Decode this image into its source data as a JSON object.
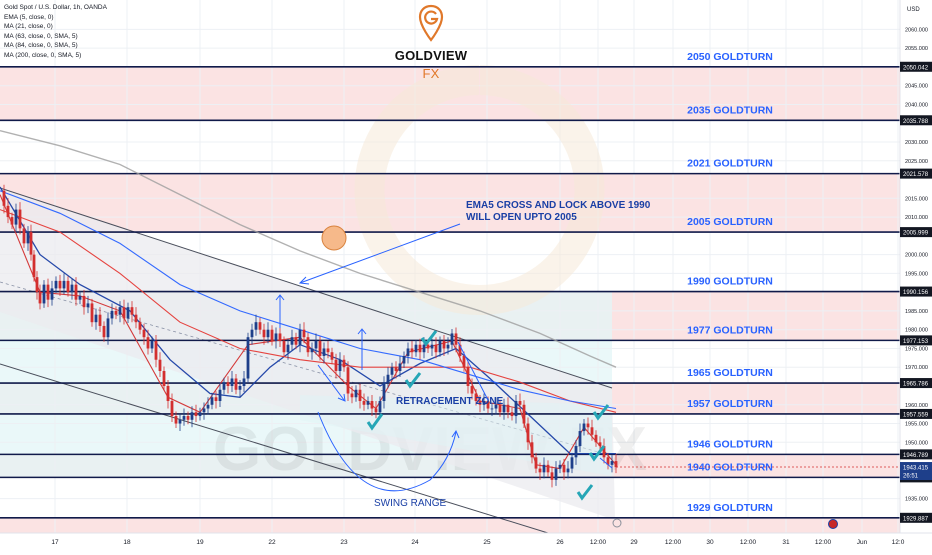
{
  "header": {
    "symbol": "Gold Spot / U.S. Dollar, 1h, OANDA",
    "indicators": [
      "EMA (5, close, 0)",
      "MA (21, close, 0)",
      "MA (63, close, 0, SMA, 5)",
      "MA (84, close, 0, SMA, 5)",
      "MA (200, close, 0, SMA, 5)"
    ]
  },
  "logo": {
    "text": "GOLDVIEW",
    "suffix": "FX",
    "watermark": "GOLDVIEW FX"
  },
  "colors": {
    "background": "#ffffff",
    "pink_zone": "#fbe3e3",
    "cyan_zone": "#e3f5f7",
    "grey_channel": "#ebebef",
    "level_line": "#101a4a",
    "level_label": "#2962ff",
    "candle_up": "#1e3f8a",
    "candle_down": "#d32f2f",
    "check": "#26a6b6",
    "ema5": "#d32f2f",
    "ma21": "#1a3fa5",
    "ma63": "#e53935",
    "ma84": "#2962ff",
    "ma200": "#9e9e9e",
    "logo_accent": "#e0782a",
    "price_tag": "#131722",
    "current_tag": "#1e3f8a"
  },
  "chart_data": {
    "type": "line",
    "title": "Gold Spot / U.S. Dollar, 1h, OANDA",
    "xlabel": "",
    "ylabel": "USD",
    "ylim": [
      1927.5,
      2067.5
    ],
    "grid": true,
    "price_axis": {
      "unit": "USD",
      "ticks": [
        1935,
        1950,
        1955,
        1960,
        1970,
        1975,
        1980,
        1985,
        1995,
        2000,
        2010,
        2015,
        2025,
        2030,
        2040,
        2045,
        2055,
        2060
      ]
    },
    "time_axis": {
      "ticks": [
        "17",
        "18",
        "19",
        "22",
        "23",
        "24",
        "25",
        "26",
        "12:00",
        "29",
        "12:00",
        "30",
        "12:00",
        "31",
        "12:00",
        "Jun",
        "12:0"
      ]
    },
    "levels": [
      {
        "label": "2050 GOLDTURN",
        "price": 2050.042
      },
      {
        "label": "2035 GOLDTURN",
        "price": 2035.788
      },
      {
        "label": "2021 GOLDTURN",
        "price": 2021.578
      },
      {
        "label": "2005 GOLDTURN",
        "price": 2005.999
      },
      {
        "label": "1990 GOLDTURN",
        "price": 1990.156
      },
      {
        "label": "1977 GOLDTURN",
        "price": 1977.153
      },
      {
        "label": "1965 GOLDTURN",
        "price": 1965.786
      },
      {
        "label": "1957 GOLDTURN",
        "price": 1957.559
      },
      {
        "label": "1946 GOLDTURN",
        "price": 1946.789
      },
      {
        "label": "1940 GOLDTURN",
        "price": 1940.657
      },
      {
        "label": "1929 GOLDTURN",
        "price": 1929.887
      }
    ],
    "price_tags": [
      "2050.042",
      "2035.788",
      "2021.578",
      "2005.999",
      "1990.156",
      "1977.153",
      "1965.786",
      "1957.559",
      "1946.789",
      "1940.657",
      "1929.887"
    ],
    "current_price": {
      "value": "1943.415",
      "countdown": "26:51"
    },
    "annotations": {
      "ema_note": [
        "EMA5 CROSS AND LOCK ABOVE 1990",
        "WILL OPEN UPTO 2005"
      ],
      "retracement": "RETRACEMENT ZONE",
      "swing": "SWING RANGE"
    },
    "close_path": [
      [
        0,
        2017
      ],
      [
        4,
        2013
      ],
      [
        8,
        2010
      ],
      [
        12,
        2008
      ],
      [
        16,
        2012
      ],
      [
        20,
        2007
      ],
      [
        24,
        2003
      ],
      [
        28,
        2006
      ],
      [
        31,
        2000
      ],
      [
        34,
        1994
      ],
      [
        37,
        1990
      ],
      [
        40,
        1987
      ],
      [
        44,
        1992
      ],
      [
        48,
        1988
      ],
      [
        52,
        1991
      ],
      [
        56,
        1993
      ],
      [
        60,
        1991
      ],
      [
        64,
        1993
      ],
      [
        68,
        1990
      ],
      [
        72,
        1992
      ],
      [
        76,
        1988
      ],
      [
        80,
        1989
      ],
      [
        84,
        1986
      ],
      [
        88,
        1987
      ],
      [
        92,
        1982
      ],
      [
        96,
        1984
      ],
      [
        100,
        1981
      ],
      [
        104,
        1978
      ],
      [
        108,
        1983
      ],
      [
        112,
        1985
      ],
      [
        116,
        1984
      ],
      [
        120,
        1986
      ],
      [
        124,
        1983
      ],
      [
        128,
        1986
      ],
      [
        132,
        1984
      ],
      [
        136,
        1982
      ],
      [
        140,
        1980
      ],
      [
        144,
        1978
      ],
      [
        148,
        1975
      ],
      [
        152,
        1977
      ],
      [
        156,
        1972
      ],
      [
        160,
        1969
      ],
      [
        164,
        1965
      ],
      [
        168,
        1961
      ],
      [
        172,
        1957
      ],
      [
        176,
        1955
      ],
      [
        180,
        1956
      ],
      [
        184,
        1957
      ],
      [
        188,
        1956
      ],
      [
        192,
        1958
      ],
      [
        196,
        1957
      ],
      [
        200,
        1958
      ],
      [
        204,
        1959
      ],
      [
        208,
        1960
      ],
      [
        212,
        1962
      ],
      [
        216,
        1961
      ],
      [
        220,
        1964
      ],
      [
        224,
        1966
      ],
      [
        228,
        1965
      ],
      [
        232,
        1967
      ],
      [
        236,
        1964
      ],
      [
        240,
        1965
      ],
      [
        244,
        1967
      ],
      [
        248,
        1978
      ],
      [
        252,
        1980
      ],
      [
        256,
        1982
      ],
      [
        260,
        1980
      ],
      [
        264,
        1978
      ],
      [
        268,
        1980
      ],
      [
        272,
        1977
      ],
      [
        276,
        1979
      ],
      [
        280,
        1977
      ],
      [
        284,
        1974
      ],
      [
        288,
        1976
      ],
      [
        292,
        1978
      ],
      [
        296,
        1976
      ],
      [
        300,
        1980
      ],
      [
        304,
        1978
      ],
      [
        308,
        1974
      ],
      [
        312,
        1975
      ],
      [
        316,
        1977
      ],
      [
        320,
        1973
      ],
      [
        324,
        1975
      ],
      [
        328,
        1974
      ],
      [
        332,
        1972
      ],
      [
        336,
        1969
      ],
      [
        340,
        1972
      ],
      [
        344,
        1970
      ],
      [
        348,
        1963
      ],
      [
        352,
        1962
      ],
      [
        356,
        1964
      ],
      [
        360,
        1961
      ],
      [
        364,
        1960
      ],
      [
        368,
        1961
      ],
      [
        372,
        1959
      ],
      [
        376,
        1958
      ],
      [
        380,
        1961
      ],
      [
        384,
        1966
      ],
      [
        388,
        1968
      ],
      [
        392,
        1970
      ],
      [
        396,
        1969
      ],
      [
        400,
        1971
      ],
      [
        404,
        1973
      ],
      [
        408,
        1975
      ],
      [
        412,
        1974
      ],
      [
        416,
        1976
      ],
      [
        420,
        1974
      ],
      [
        424,
        1976
      ],
      [
        428,
        1975
      ],
      [
        432,
        1976
      ],
      [
        436,
        1974
      ],
      [
        440,
        1977
      ],
      [
        444,
        1975
      ],
      [
        448,
        1976
      ],
      [
        452,
        1979
      ],
      [
        456,
        1976
      ],
      [
        460,
        1973
      ],
      [
        464,
        1970
      ],
      [
        468,
        1965
      ],
      [
        472,
        1963
      ],
      [
        476,
        1961
      ],
      [
        480,
        1960
      ],
      [
        484,
        1961
      ],
      [
        488,
        1959
      ],
      [
        492,
        1959
      ],
      [
        496,
        1960
      ],
      [
        500,
        1958
      ],
      [
        504,
        1960
      ],
      [
        508,
        1958
      ],
      [
        512,
        1957
      ],
      [
        516,
        1961
      ],
      [
        520,
        1960
      ],
      [
        524,
        1955
      ],
      [
        528,
        1950
      ],
      [
        532,
        1946
      ],
      [
        536,
        1943
      ],
      [
        540,
        1942
      ],
      [
        544,
        1944
      ],
      [
        548,
        1942
      ],
      [
        552,
        1940
      ],
      [
        556,
        1943
      ],
      [
        560,
        1944
      ],
      [
        564,
        1942
      ],
      [
        568,
        1943
      ],
      [
        572,
        1946
      ],
      [
        576,
        1949
      ],
      [
        580,
        1953
      ],
      [
        584,
        1955
      ],
      [
        588,
        1954
      ],
      [
        592,
        1952
      ],
      [
        596,
        1950
      ],
      [
        600,
        1949
      ],
      [
        604,
        1946
      ],
      [
        608,
        1944
      ],
      [
        612,
        1945
      ],
      [
        616,
        1943.4
      ]
    ],
    "series": [
      {
        "name": "EMA (5, close, 0)",
        "values": [
          [
            0,
            2016
          ],
          [
            40,
            1990
          ],
          [
            80,
            1989
          ],
          [
            120,
            1985
          ],
          [
            168,
            1962
          ],
          [
            200,
            1958
          ],
          [
            248,
            1976
          ],
          [
            300,
            1978
          ],
          [
            348,
            1965
          ],
          [
            376,
            1959
          ],
          [
            408,
            1974
          ],
          [
            452,
            1977
          ],
          [
            480,
            1961
          ],
          [
            520,
            1959
          ],
          [
            536,
            1944
          ],
          [
            560,
            1943
          ],
          [
            584,
            1954
          ],
          [
            616,
            1944
          ]
        ]
      },
      {
        "name": "MA (21, close, 0)",
        "values": [
          [
            0,
            2018
          ],
          [
            40,
            2000
          ],
          [
            80,
            1992
          ],
          [
            130,
            1985
          ],
          [
            170,
            1972
          ],
          [
            210,
            1963
          ],
          [
            240,
            1962
          ],
          [
            270,
            1970
          ],
          [
            300,
            1976
          ],
          [
            340,
            1972
          ],
          [
            380,
            1965
          ],
          [
            420,
            1971
          ],
          [
            456,
            1975
          ],
          [
            490,
            1967
          ],
          [
            530,
            1957
          ],
          [
            570,
            1947
          ],
          [
            616,
            1947
          ]
        ]
      },
      {
        "name": "MA (63, close, 0, SMA, 5)",
        "values": [
          [
            0,
            2012
          ],
          [
            60,
            2006
          ],
          [
            120,
            1995
          ],
          [
            180,
            1982
          ],
          [
            240,
            1975
          ],
          [
            300,
            1972
          ],
          [
            360,
            1970
          ],
          [
            420,
            1970
          ],
          [
            470,
            1970
          ],
          [
            520,
            1966
          ],
          [
            570,
            1961
          ],
          [
            616,
            1958
          ]
        ]
      },
      {
        "name": "MA (84, close, 0, SMA, 5)",
        "values": [
          [
            0,
            2017
          ],
          [
            60,
            2011
          ],
          [
            120,
            2003
          ],
          [
            180,
            1992
          ],
          [
            240,
            1985
          ],
          [
            300,
            1980
          ],
          [
            360,
            1975
          ],
          [
            420,
            1972
          ],
          [
            470,
            1968
          ],
          [
            520,
            1964
          ],
          [
            570,
            1961
          ],
          [
            616,
            1959
          ]
        ]
      },
      {
        "name": "MA (200, close, 0, SMA, 5)",
        "values": [
          [
            0,
            2033
          ],
          [
            60,
            2029
          ],
          [
            120,
            2024
          ],
          [
            180,
            2016
          ],
          [
            240,
            2008
          ],
          [
            300,
            2001
          ],
          [
            360,
            1995
          ],
          [
            420,
            1990
          ],
          [
            480,
            1985
          ],
          [
            540,
            1979
          ],
          [
            590,
            1973
          ],
          [
            616,
            1970
          ]
        ]
      }
    ]
  }
}
